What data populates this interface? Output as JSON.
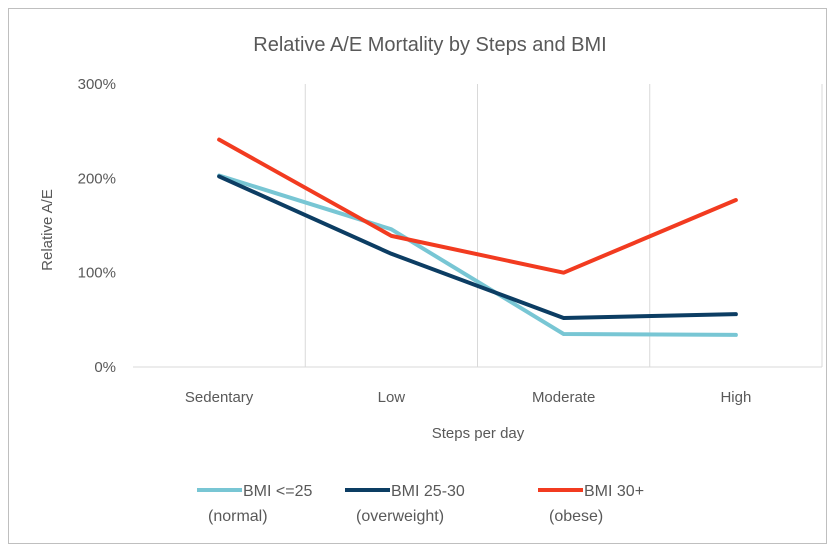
{
  "chart_data": {
    "type": "line",
    "title": "Relative A/E Mortality by Steps and BMI",
    "xlabel": "Steps per day",
    "ylabel": "Relative A/E",
    "categories": [
      "Sedentary",
      "Low",
      "Moderate",
      "High"
    ],
    "ylim": [
      0,
      3
    ],
    "yticks": [
      {
        "value": 0,
        "label": "0%"
      },
      {
        "value": 1,
        "label": "100%"
      },
      {
        "value": 2,
        "label": "200%"
      },
      {
        "value": 3,
        "label": "300%"
      }
    ],
    "grid": "vertical",
    "legend_position": "bottom",
    "series": [
      {
        "name": "BMI <=25 (normal)",
        "legend_lines": [
          "BMI <=25",
          "(normal)"
        ],
        "color": "#78c6d4",
        "values": [
          2.03,
          1.46,
          0.35,
          0.34
        ]
      },
      {
        "name": "BMI 25-30 (overweight)",
        "legend_lines": [
          "BMI 25-30",
          "(overweight)"
        ],
        "color": "#0c3d63",
        "values": [
          2.02,
          1.2,
          0.52,
          0.56
        ]
      },
      {
        "name": "BMI 30+ (obese)",
        "legend_lines": [
          "BMI 30+",
          "(obese)"
        ],
        "color": "#f23b20",
        "values": [
          2.41,
          1.39,
          1.0,
          1.77
        ]
      }
    ]
  }
}
